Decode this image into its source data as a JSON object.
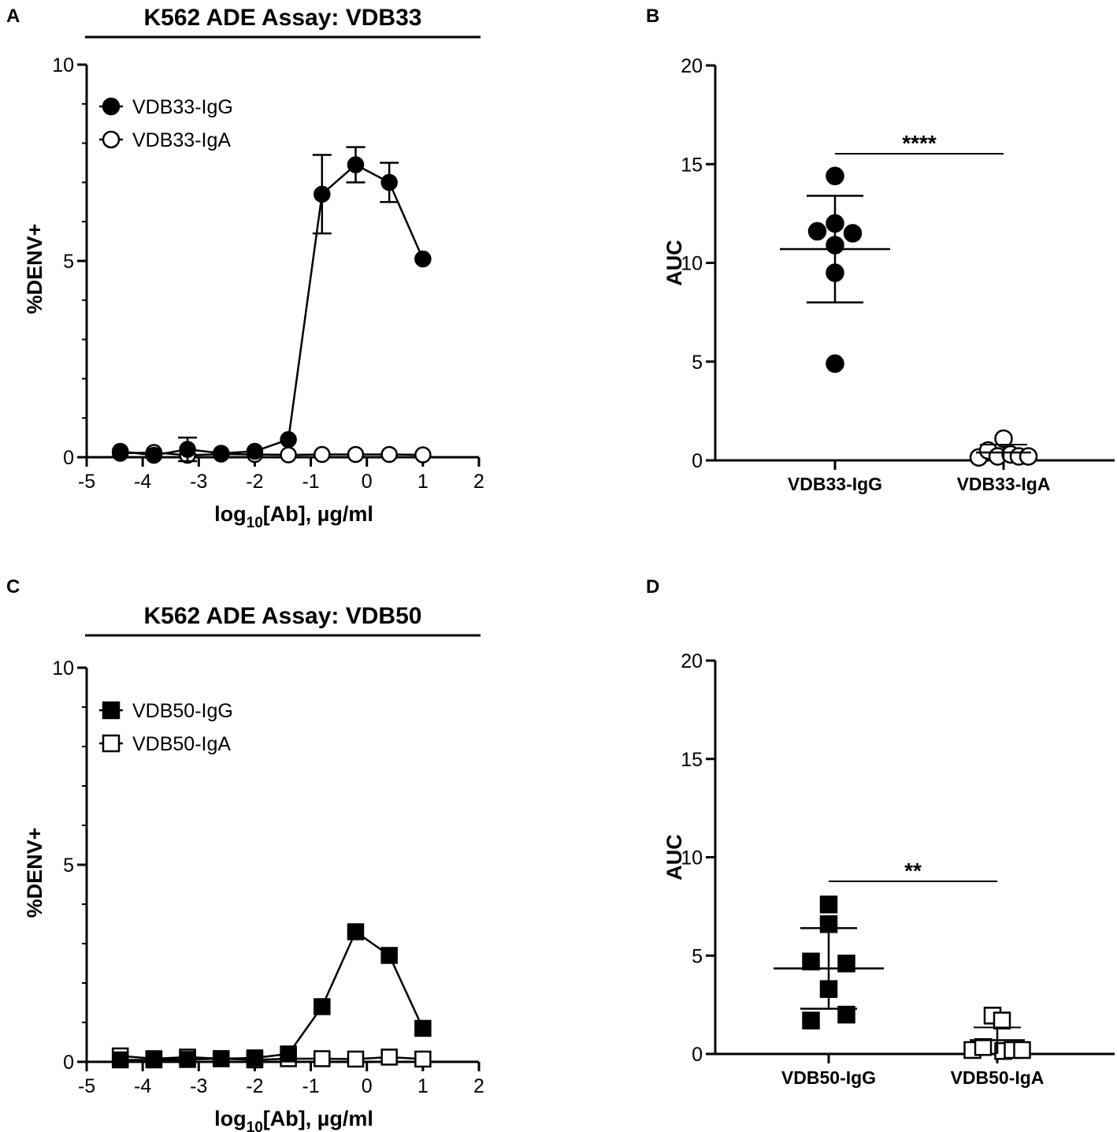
{
  "chart_data": [
    {
      "panel_label": "A",
      "type": "line",
      "title": "K562 ADE Assay: VDB33",
      "xlabel_main": "log",
      "xlabel_sub": "10",
      "xlabel_rest": "[Ab], µg/ml",
      "ylabel": "%DENV+",
      "xlim": [
        -5,
        2
      ],
      "ylim": [
        0,
        10
      ],
      "xticks": [
        "-5",
        "-4",
        "-3",
        "-2",
        "-1",
        "0",
        "1",
        "2"
      ],
      "yticks": [
        "0",
        "5",
        "10"
      ],
      "legend": "top-left",
      "series": [
        {
          "name": "VDB33-IgG",
          "marker": "circle",
          "filled": true,
          "x": [
            -4.4,
            -3.8,
            -3.2,
            -2.6,
            -2.0,
            -1.4,
            -0.8,
            -0.2,
            0.4,
            1.0
          ],
          "y": [
            0.15,
            0.05,
            0.2,
            0.1,
            0.15,
            0.45,
            6.7,
            7.45,
            7.0,
            5.05
          ],
          "err": [
            0.05,
            0.05,
            0.3,
            0.05,
            0.05,
            0.05,
            1.0,
            0.45,
            0.5,
            0.0
          ]
        },
        {
          "name": "VDB33-IgA",
          "marker": "circle",
          "filled": false,
          "x": [
            -4.4,
            -3.8,
            -3.2,
            -2.6,
            -2.0,
            -1.4,
            -0.8,
            -0.2,
            0.4,
            1.0
          ],
          "y": [
            0.1,
            0.12,
            0.05,
            0.08,
            0.07,
            0.06,
            0.07,
            0.07,
            0.07,
            0.06
          ],
          "err": [
            0,
            0,
            0,
            0,
            0,
            0,
            0,
            0,
            0,
            0
          ]
        }
      ]
    },
    {
      "panel_label": "B",
      "type": "scatter",
      "title": "",
      "ylabel": "AUC",
      "ylim": [
        0,
        20
      ],
      "yticks": [
        "0",
        "5",
        "10",
        "15",
        "20"
      ],
      "categories": [
        "VDB33-IgG",
        "VDB33-IgA"
      ],
      "marker": "circle",
      "significance": "****",
      "groups": [
        {
          "name": "VDB33-IgG",
          "filled": true,
          "points": [
            [
              0,
              14.4
            ],
            [
              -0.75,
              11.6
            ],
            [
              0,
              12.0
            ],
            [
              0.75,
              11.5
            ],
            [
              0,
              10.9
            ],
            [
              0,
              9.5
            ],
            [
              0,
              4.9
            ]
          ],
          "mean": 10.7,
          "sd_low": 8.0,
          "sd_high": 13.4
        },
        {
          "name": "VDB33-IgA",
          "filled": false,
          "points": [
            [
              -1.05,
              0.15
            ],
            [
              -0.65,
              0.5
            ],
            [
              -0.25,
              0.2
            ],
            [
              0,
              1.1
            ],
            [
              0.3,
              0.3
            ],
            [
              0.65,
              0.2
            ],
            [
              1.05,
              0.2
            ]
          ],
          "mean": 0.4,
          "sd_low": 0.0,
          "sd_high": 0.8
        }
      ]
    },
    {
      "panel_label": "C",
      "type": "line",
      "title": "K562 ADE Assay: VDB50",
      "xlabel_main": "log",
      "xlabel_sub": "10",
      "xlabel_rest": "[Ab], µg/ml",
      "ylabel": "%DENV+",
      "xlim": [
        -5,
        2
      ],
      "ylim": [
        0,
        10
      ],
      "xticks": [
        "-5",
        "-4",
        "-3",
        "-2",
        "-1",
        "0",
        "1",
        "2"
      ],
      "yticks": [
        "0",
        "5",
        "10"
      ],
      "legend": "top-left",
      "series": [
        {
          "name": "VDB50-IgG",
          "marker": "square",
          "filled": true,
          "x": [
            -4.4,
            -3.8,
            -3.2,
            -2.6,
            -2.0,
            -1.4,
            -0.8,
            -0.2,
            0.4,
            1.0
          ],
          "y": [
            0.05,
            0.05,
            0.06,
            0.08,
            0.1,
            0.2,
            1.4,
            3.3,
            2.7,
            0.85
          ],
          "err": [
            0,
            0,
            0,
            0,
            0,
            0,
            0,
            0,
            0,
            0
          ]
        },
        {
          "name": "VDB50-IgA",
          "marker": "square",
          "filled": false,
          "x": [
            -4.4,
            -3.8,
            -3.2,
            -2.6,
            -2.0,
            -1.4,
            -0.8,
            -0.2,
            0.4,
            1.0
          ],
          "y": [
            0.15,
            0.08,
            0.12,
            0.08,
            0.05,
            0.08,
            0.08,
            0.07,
            0.12,
            0.07
          ],
          "err": [
            0,
            0,
            0,
            0,
            0,
            0,
            0,
            0,
            0,
            0
          ]
        }
      ]
    },
    {
      "panel_label": "D",
      "type": "scatter",
      "title": "",
      "ylabel": "AUC",
      "ylim": [
        0,
        20
      ],
      "yticks": [
        "0",
        "5",
        "10",
        "15",
        "20"
      ],
      "categories": [
        "VDB50-IgG",
        "VDB50-IgA"
      ],
      "marker": "square",
      "significance": "**",
      "groups": [
        {
          "name": "VDB50-IgG",
          "filled": true,
          "points": [
            [
              0,
              7.6
            ],
            [
              0,
              6.6
            ],
            [
              -0.75,
              4.7
            ],
            [
              0.75,
              4.6
            ],
            [
              0,
              3.3
            ],
            [
              0.75,
              2.0
            ],
            [
              -0.75,
              1.7
            ]
          ],
          "mean": 4.35,
          "sd_low": 2.3,
          "sd_high": 6.4
        },
        {
          "name": "VDB50-IgA",
          "filled": false,
          "points": [
            [
              -1.05,
              0.2
            ],
            [
              -0.6,
              0.35
            ],
            [
              -0.2,
              1.95
            ],
            [
              0.2,
              1.7
            ],
            [
              0.25,
              0.15
            ],
            [
              0.65,
              0.2
            ],
            [
              1.05,
              0.2
            ]
          ],
          "mean": 0.7,
          "sd_low": 0.0,
          "sd_high": 1.35
        }
      ]
    }
  ]
}
